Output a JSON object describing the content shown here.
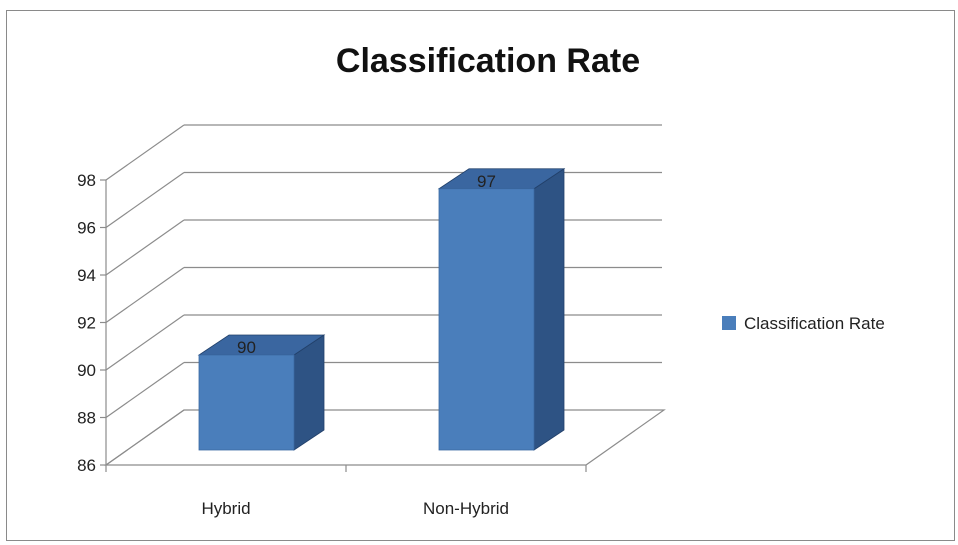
{
  "chart_data": {
    "type": "bar",
    "title": "Classification Rate",
    "categories": [
      "Hybrid",
      "Non-Hybrid"
    ],
    "series": [
      {
        "name": "Classification Rate",
        "values": [
          90,
          97
        ],
        "color": "#4a7ebb"
      }
    ],
    "ylim": [
      86,
      98
    ],
    "yticks": [
      "86",
      "88",
      "90",
      "92",
      "94",
      "96",
      "98"
    ],
    "data_labels": [
      "90",
      "97"
    ],
    "grid": true,
    "legend": "right",
    "style": "3d-column"
  }
}
